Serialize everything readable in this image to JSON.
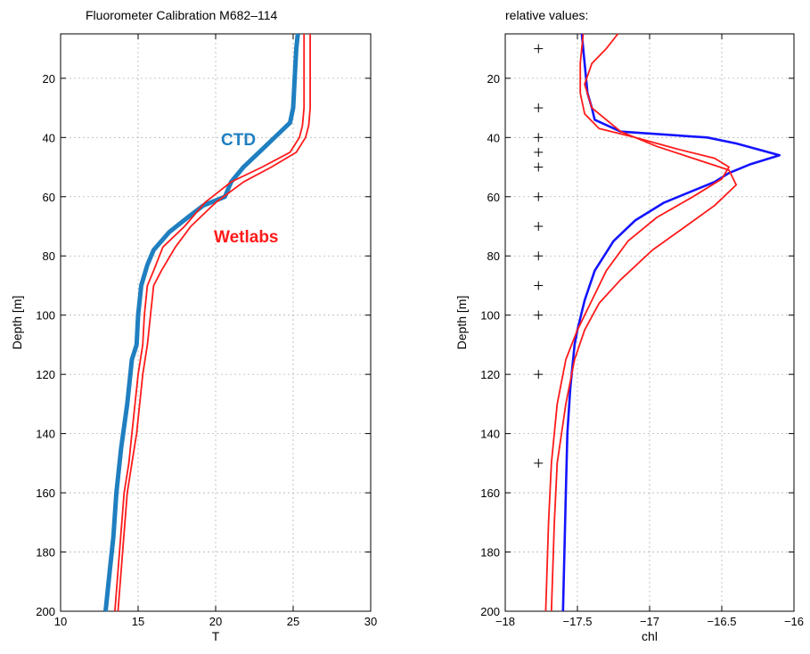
{
  "chart_data": [
    {
      "type": "line",
      "title": "Fluorometer Calibration M682–114",
      "xlabel": "T",
      "ylabel": "Depth [m]",
      "xlim": [
        10,
        30
      ],
      "ylim": [
        200,
        5
      ],
      "y_inverted": true,
      "grid": true,
      "xticks": [
        "10",
        "15",
        "20",
        "25",
        "30"
      ],
      "yticks": [
        "20",
        "40",
        "60",
        "80",
        "100",
        "120",
        "140",
        "160",
        "180",
        "200"
      ],
      "annotations": [
        {
          "text": "CTD",
          "color": "#1f7fc0",
          "series": "CTD"
        },
        {
          "text": "Wetlabs",
          "color": "#ff1a1a",
          "series": "Wetlabs"
        }
      ],
      "series": [
        {
          "name": "CTD",
          "color": "#1f7fc0",
          "x": [
            25.3,
            25.2,
            25.1,
            25.0,
            24.8,
            24.0,
            23.2,
            21.8,
            21.0,
            20.6,
            19.2,
            18.2,
            17.0,
            16.0,
            15.6,
            15.2,
            15.0,
            14.9,
            14.6,
            14.3,
            13.9,
            13.6,
            13.4,
            13.1,
            12.9
          ],
          "y": [
            5,
            10,
            20,
            30,
            35,
            39,
            43,
            50,
            55,
            60,
            63,
            67,
            72,
            78,
            83,
            90,
            100,
            110,
            115,
            130,
            145,
            160,
            175,
            190,
            200
          ]
        },
        {
          "name": "Wetlabs",
          "color": "#ff1a1a",
          "x": [
            25.7,
            25.7,
            25.7,
            25.6,
            25.4,
            24.8,
            23.0,
            21.0,
            19.3,
            18.0,
            16.6,
            16.0,
            15.6,
            15.4,
            15.3,
            15.0,
            14.6,
            14.4,
            14.1,
            13.8,
            13.5
          ],
          "y": [
            5,
            20,
            30,
            36,
            40,
            45,
            50,
            55,
            62,
            70,
            77,
            85,
            90,
            100,
            110,
            120,
            140,
            150,
            160,
            180,
            200
          ]
        },
        {
          "name": "Wetlabs-2",
          "color": "#ff1a1a",
          "x": [
            26.1,
            26.1,
            26.1,
            26.0,
            25.8,
            25.2,
            23.6,
            21.8,
            20.0,
            18.4,
            17.4,
            16.5,
            16.0,
            15.8,
            15.6,
            15.3,
            14.9,
            14.6,
            14.3,
            14.0,
            13.7
          ],
          "y": [
            5,
            20,
            30,
            36,
            40,
            45,
            50,
            55,
            62,
            70,
            77,
            85,
            90,
            100,
            110,
            120,
            140,
            150,
            160,
            180,
            200
          ]
        }
      ]
    },
    {
      "type": "line",
      "title": "relative values:",
      "xlabel": "chl",
      "ylabel": "Depth [m]",
      "xlim": [
        -18,
        -16
      ],
      "ylim": [
        200,
        5
      ],
      "y_inverted": true,
      "grid": true,
      "xticks": [
        "−18",
        "−17.5",
        "−17",
        "−16.5",
        "−16"
      ],
      "yticks": [
        "20",
        "40",
        "60",
        "80",
        "100",
        "120",
        "140",
        "160",
        "180",
        "200"
      ],
      "markers": {
        "symbol": "+",
        "x": -17.77,
        "y": [
          10,
          30,
          40,
          45,
          50,
          60,
          70,
          80,
          90,
          100,
          120,
          150
        ]
      },
      "series": [
        {
          "name": "blue",
          "color": "#1414ff",
          "x": [
            -17.47,
            -17.45,
            -17.43,
            -17.4,
            -17.38,
            -17.2,
            -16.6,
            -16.4,
            -16.1,
            -16.3,
            -16.45,
            -16.55,
            -16.9,
            -17.1,
            -17.25,
            -17.38,
            -17.45,
            -17.5,
            -17.52,
            -17.55,
            -17.57,
            -17.58,
            -17.59,
            -17.6
          ],
          "y": [
            5,
            15,
            25,
            30,
            34,
            38,
            40,
            42,
            46,
            49,
            52,
            55,
            62,
            68,
            75,
            85,
            95,
            105,
            110,
            125,
            140,
            160,
            180,
            200
          ]
        },
        {
          "name": "red-1",
          "color": "#ff1a1a",
          "x": [
            -17.46,
            -17.48,
            -17.48,
            -17.45,
            -17.35,
            -17.1,
            -16.8,
            -16.55,
            -16.45,
            -16.5,
            -16.7,
            -16.95,
            -17.15,
            -17.3,
            -17.4,
            -17.5,
            -17.58,
            -17.64,
            -17.68,
            -17.7,
            -17.71,
            -17.72
          ],
          "y": [
            5,
            15,
            25,
            32,
            37,
            40,
            44,
            47,
            50,
            54,
            60,
            67,
            75,
            85,
            95,
            105,
            115,
            130,
            150,
            170,
            185,
            200
          ]
        },
        {
          "name": "red-2",
          "color": "#ff1a1a",
          "x": [
            -17.22,
            -17.3,
            -17.4,
            -17.45,
            -17.4,
            -17.2,
            -16.95,
            -16.7,
            -16.45,
            -16.4,
            -16.55,
            -16.75,
            -16.98,
            -17.2,
            -17.35,
            -17.45,
            -17.52,
            -17.58,
            -17.64,
            -17.66,
            -17.68
          ],
          "y": [
            5,
            10,
            15,
            22,
            30,
            38,
            43,
            47,
            51,
            56,
            63,
            70,
            78,
            88,
            96,
            105,
            115,
            130,
            150,
            170,
            200
          ]
        }
      ]
    }
  ]
}
